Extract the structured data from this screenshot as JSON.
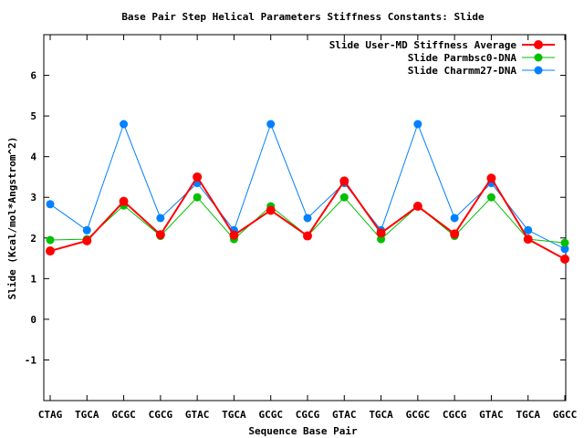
{
  "chart_data": {
    "type": "line",
    "title": "Base Pair Step Helical Parameters Stiffness Constants: Slide",
    "xlabel": "Sequence Base Pair",
    "ylabel": "Slide (Kcal/mol*Angstrom^2)",
    "ylim": [
      -2,
      7
    ],
    "yticks": [
      "-1",
      "0",
      "1",
      "2",
      "3",
      "4",
      "5",
      "6"
    ],
    "categories": [
      "CTAG",
      "TGCA",
      "GCGC",
      "CGCG",
      "GTAC",
      "TGCA",
      "GCGC",
      "CGCG",
      "GTAC",
      "TGCA",
      "GCGC",
      "CGCG",
      "GTAC",
      "TGCA",
      "GGCC"
    ],
    "legend_position": "top-right",
    "grid": false,
    "series": [
      {
        "name": "Slide User-MD Stiffness Average",
        "color": "#ff0000",
        "values": [
          1.68,
          1.93,
          2.9,
          2.08,
          3.5,
          2.07,
          2.68,
          2.05,
          3.4,
          2.12,
          2.78,
          2.1,
          3.47,
          1.97,
          1.48
        ]
      },
      {
        "name": "Slide Parmbsc0-DNA",
        "color": "#00c000",
        "values": [
          1.95,
          1.97,
          2.8,
          2.05,
          3.0,
          1.97,
          2.78,
          2.05,
          3.0,
          1.97,
          2.78,
          2.05,
          3.0,
          1.97,
          1.88
        ]
      },
      {
        "name": "Slide Charmm27-DNA",
        "color": "#0080ff",
        "values": [
          2.83,
          2.19,
          4.8,
          2.49,
          3.35,
          2.19,
          4.8,
          2.49,
          3.35,
          2.19,
          4.8,
          2.49,
          3.35,
          2.19,
          1.73
        ]
      }
    ]
  }
}
